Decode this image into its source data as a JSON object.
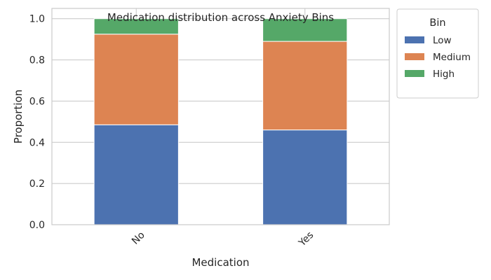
{
  "chart_data": {
    "type": "bar",
    "stacked": true,
    "title": "Medication distribution across Anxiety Bins",
    "xlabel": "Medication",
    "ylabel": "Proportion",
    "categories": [
      "No",
      "Yes"
    ],
    "series": [
      {
        "name": "Low",
        "color": "#4c72b0",
        "values": [
          0.485,
          0.46
        ]
      },
      {
        "name": "Medium",
        "color": "#dd8452",
        "values": [
          0.44,
          0.43
        ]
      },
      {
        "name": "High",
        "color": "#55a868",
        "values": [
          0.075,
          0.11
        ]
      }
    ],
    "ylim": [
      0,
      1.05
    ],
    "yticks": [
      "0.0",
      "0.2",
      "0.4",
      "0.6",
      "0.8",
      "1.0"
    ],
    "grid": true,
    "legend": {
      "title": "Bin",
      "placement": "outside-top-right"
    }
  }
}
